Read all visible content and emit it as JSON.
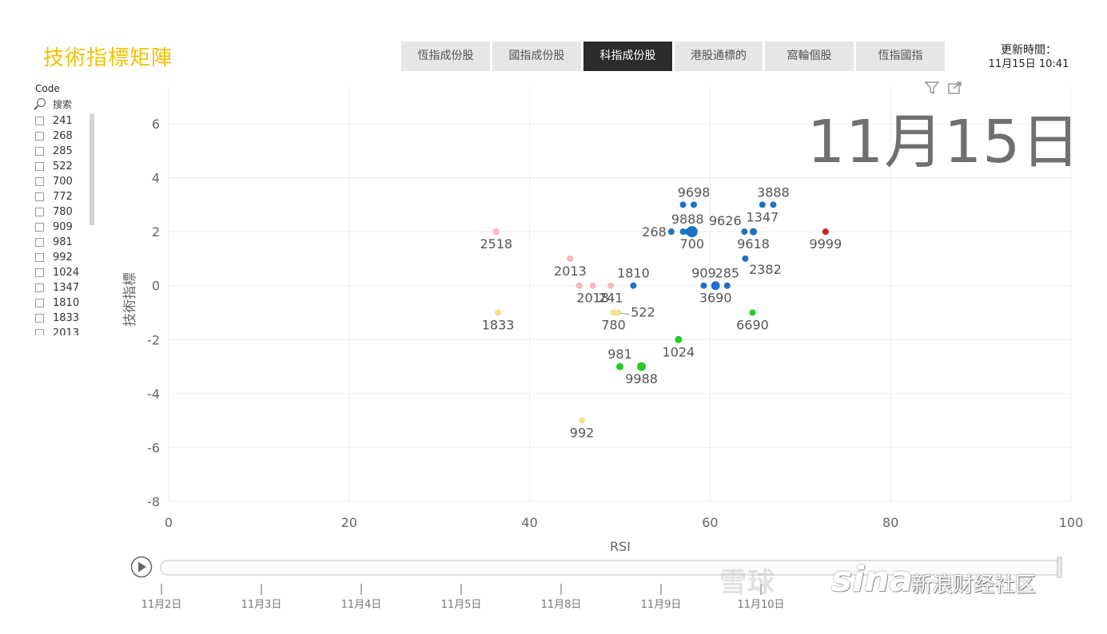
{
  "header": {
    "title": "技術指標矩陣",
    "tabs": [
      {
        "label": "恆指成份股",
        "active": false
      },
      {
        "label": "國指成份股",
        "active": false
      },
      {
        "label": "科指成份股",
        "active": true
      },
      {
        "label": "港股通標的",
        "active": false
      },
      {
        "label": "窩輪個股",
        "active": false
      },
      {
        "label": "恆指國指",
        "active": false
      }
    ],
    "updated_label": "更新時間：",
    "updated_value": "11月15日 10:41"
  },
  "slicer": {
    "label": "Code",
    "search_placeholder": "搜索",
    "items": [
      "241",
      "268",
      "285",
      "522",
      "700",
      "772",
      "780",
      "909",
      "981",
      "992",
      "1024",
      "1347",
      "1810",
      "1833",
      "2013"
    ]
  },
  "big_date": "11月15日",
  "timeline": {
    "labels": [
      "11月2日",
      "11月3日",
      "11月4日",
      "11月5日",
      "11月8日",
      "11月9日",
      "11月10日"
    ]
  },
  "watermark": {
    "text1": "雪球",
    "text2": "sina",
    "text3": "新浪财经社区"
  },
  "colors": {
    "blue": "#1f6fc5",
    "pink": "#f6b8b8",
    "yellow": "#f5e08e",
    "green": "#22cc22",
    "red": "#d0201e"
  },
  "chart_data": {
    "type": "scatter",
    "xlabel": "RSI",
    "ylabel": "技術指標",
    "xlim": [
      0,
      100
    ],
    "ylim": [
      -8,
      7
    ],
    "xticks": [
      0,
      20,
      40,
      60,
      80,
      100
    ],
    "yticks": [
      6,
      4,
      2,
      0,
      -2,
      -4,
      -6,
      -8
    ],
    "points": [
      {
        "label": "2518",
        "x": 36.3,
        "y": 2,
        "color": "pink",
        "size": 4,
        "label_pos": "below"
      },
      {
        "label": "2013",
        "x": 44.5,
        "y": 1,
        "color": "pink",
        "size": 4,
        "label_pos": "below"
      },
      {
        "label": "",
        "x": 45.5,
        "y": 0,
        "color": "pink",
        "size": 4,
        "label_pos": "none"
      },
      {
        "label": "2018",
        "x": 47,
        "y": 0,
        "color": "pink",
        "size": 4,
        "label_pos": "below"
      },
      {
        "label": "241",
        "x": 49,
        "y": 0,
        "color": "pink",
        "size": 4,
        "label_pos": "below"
      },
      {
        "label": "1833",
        "x": 36.5,
        "y": -1,
        "color": "yellow",
        "size": 4,
        "label_pos": "below"
      },
      {
        "label": "780",
        "x": 49.3,
        "y": -1,
        "color": "yellow",
        "size": 4,
        "label_pos": "below"
      },
      {
        "label": "522",
        "x": 49.8,
        "y": -1,
        "color": "yellow",
        "size": 4,
        "label_pos": "right"
      },
      {
        "label": "992",
        "x": 45.8,
        "y": -5,
        "color": "yellow",
        "size": 4,
        "label_pos": "below"
      },
      {
        "label": "1810",
        "x": 51.5,
        "y": 0,
        "color": "blue",
        "size": 4,
        "label_pos": "above"
      },
      {
        "label": "268",
        "x": 55.7,
        "y": 2,
        "color": "blue",
        "size": 4,
        "label_pos": "left"
      },
      {
        "label": "",
        "x": 57,
        "y": 2,
        "color": "blue",
        "size": 4,
        "label_pos": "none"
      },
      {
        "label": "700",
        "x": 58,
        "y": 2,
        "color": "blue",
        "size": 7,
        "label_pos": "below"
      },
      {
        "label": "9888",
        "x": 57.5,
        "y": 2,
        "color": "blue",
        "size": 4,
        "label_pos": "above"
      },
      {
        "label": "",
        "x": 57,
        "y": 3,
        "color": "blue",
        "size": 4,
        "label_pos": "none"
      },
      {
        "label": "9698",
        "x": 58.2,
        "y": 3,
        "color": "blue",
        "size": 4,
        "label_pos": "above"
      },
      {
        "label": "909",
        "x": 59.3,
        "y": 0,
        "color": "blue",
        "size": 4,
        "label_pos": "above"
      },
      {
        "label": "3690",
        "x": 60.6,
        "y": 0,
        "color": "blue",
        "size": 5.5,
        "label_pos": "below"
      },
      {
        "label": "285",
        "x": 61.9,
        "y": 0,
        "color": "blue",
        "size": 4,
        "label_pos": "above"
      },
      {
        "label": "9626",
        "x": 63.8,
        "y": 2,
        "color": "blue",
        "size": 4,
        "label_pos": "above-left"
      },
      {
        "label": "9618",
        "x": 64.8,
        "y": 2,
        "color": "blue",
        "size": 4.5,
        "label_pos": "below"
      },
      {
        "label": "2382",
        "x": 63.9,
        "y": 1,
        "color": "blue",
        "size": 4,
        "label_pos": "below-right"
      },
      {
        "label": "1347",
        "x": 65.8,
        "y": 3,
        "color": "blue",
        "size": 4,
        "label_pos": "below"
      },
      {
        "label": "3888",
        "x": 67,
        "y": 3,
        "color": "blue",
        "size": 4,
        "label_pos": "above"
      },
      {
        "label": "9999",
        "x": 72.8,
        "y": 2,
        "color": "red",
        "size": 4,
        "label_pos": "below"
      },
      {
        "label": "6690",
        "x": 64.7,
        "y": -1,
        "color": "green",
        "size": 4,
        "label_pos": "below"
      },
      {
        "label": "1024",
        "x": 56.5,
        "y": -2,
        "color": "green",
        "size": 4.5,
        "label_pos": "below"
      },
      {
        "label": "981",
        "x": 50,
        "y": -3,
        "color": "green",
        "size": 4.5,
        "label_pos": "above"
      },
      {
        "label": "9988",
        "x": 52.4,
        "y": -3,
        "color": "green",
        "size": 5.5,
        "label_pos": "below"
      }
    ]
  }
}
